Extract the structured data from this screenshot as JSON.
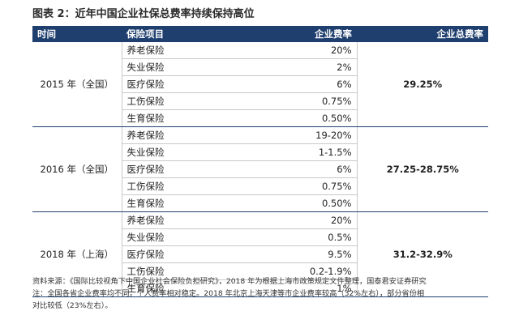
{
  "title": "图表 2：近年中国企业社保总费率持续保持高位",
  "table": {
    "headers": {
      "time": "时间",
      "item": "保险项目",
      "rate": "企业费率",
      "total": "企业总费率"
    },
    "groups": [
      {
        "year": "2015 年（全国）",
        "total": "29.25%",
        "rows": [
          {
            "item": "养老保险",
            "rate": "20%"
          },
          {
            "item": "失业保险",
            "rate": "2%"
          },
          {
            "item": "医疗保险",
            "rate": "6%"
          },
          {
            "item": "工伤保险",
            "rate": "0.75%"
          },
          {
            "item": "生育保险",
            "rate": "0.50%"
          }
        ]
      },
      {
        "year": "2016 年（全国）",
        "total": "27.25-28.75%",
        "rows": [
          {
            "item": "养老保险",
            "rate": "19-20%"
          },
          {
            "item": "失业保险",
            "rate": "1-1.5%"
          },
          {
            "item": "医疗保险",
            "rate": "6%"
          },
          {
            "item": "工伤保险",
            "rate": "0.75%"
          },
          {
            "item": "生育保险",
            "rate": "0.50%"
          }
        ]
      },
      {
        "year": "2018 年（上海）",
        "total": "31.2-32.9%",
        "rows": [
          {
            "item": "养老保险",
            "rate": "20%"
          },
          {
            "item": "失业保险",
            "rate": "0.5%"
          },
          {
            "item": "医疗保险",
            "rate": "9.5%"
          },
          {
            "item": "工伤保险",
            "rate": "0.2-1.9%"
          },
          {
            "item": "生育保险",
            "rate": "1%"
          }
        ]
      }
    ]
  },
  "notes": {
    "source": "资料来源：《国际比较视角下中国企业社会保险负担研究》，2018 年为根据上海市政策规定文件整理，国泰君安证券研究",
    "note_line1": "注：全国各省企业费率均不同，个人费率相对稳定。2018 年北京上海天津等市企业费率较高（32%左右），部分省份相",
    "note_line2": "对比较低（23%左右）。"
  }
}
